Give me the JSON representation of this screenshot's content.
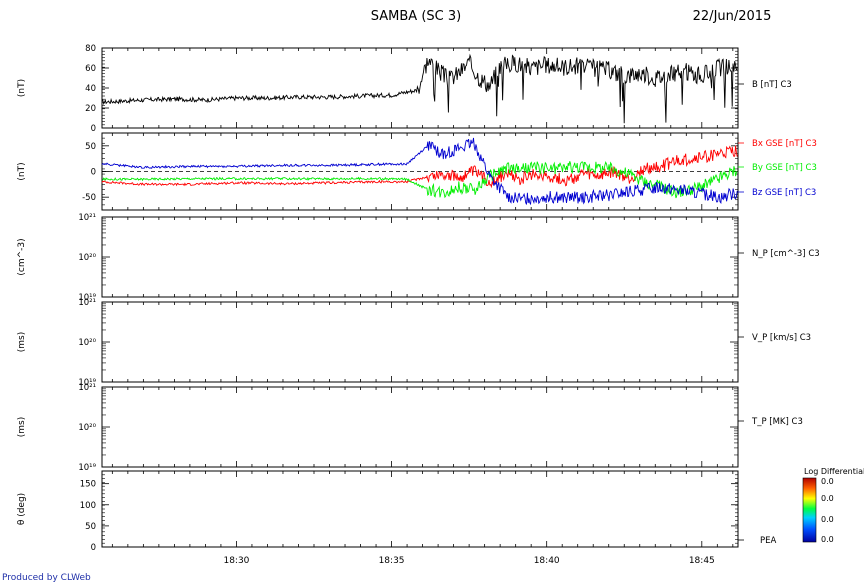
{
  "header": {
    "title": "SAMBA (SC 3)",
    "date": "22/Jun/2015"
  },
  "footer": {
    "credit": "Produced by CLWeb"
  },
  "colors": {
    "axis": "#000000",
    "bx": "#ff0000",
    "by": "#00ee00",
    "bz": "#0000d0",
    "b": "#000000"
  },
  "chart_data": [
    {
      "type": "line",
      "ylabel": "(nT)",
      "ylim": [
        0,
        80
      ],
      "yticks": [
        "0",
        "20",
        "40",
        "60",
        "80"
      ],
      "x_range": [
        "18:25:40",
        "18:46:10"
      ],
      "xticks": [
        "18:30",
        "18:35",
        "18:40",
        "18:45"
      ],
      "series": [
        {
          "name": "B [nT] C3",
          "x": [
            "18:25:40",
            "18:27:00",
            "18:28:00",
            "18:29:00",
            "18:30:00",
            "18:31:00",
            "18:32:00",
            "18:33:00",
            "18:34:00",
            "18:35:00",
            "18:35:50",
            "18:36:10",
            "18:36:30",
            "18:36:50",
            "18:37:10",
            "18:37:30",
            "18:37:50",
            "18:38:10",
            "18:38:30",
            "18:39:00",
            "18:39:30",
            "18:40:00",
            "18:40:30",
            "18:41:00",
            "18:41:30",
            "18:42:00",
            "18:42:30",
            "18:43:00",
            "18:43:30",
            "18:44:00",
            "18:44:30",
            "18:45:00",
            "18:45:30",
            "18:46:10"
          ],
          "values": [
            26,
            28,
            29,
            28,
            30,
            30,
            31,
            31,
            32,
            33,
            38,
            68,
            58,
            48,
            55,
            65,
            50,
            42,
            62,
            65,
            60,
            63,
            61,
            62,
            60,
            58,
            52,
            55,
            50,
            54,
            56,
            52,
            60,
            62
          ]
        }
      ]
    },
    {
      "type": "line",
      "ylabel": "(nT)",
      "ylim": [
        -75,
        75
      ],
      "yticks": [
        "-50",
        "0",
        "50"
      ],
      "x_range": [
        "18:25:40",
        "18:46:10"
      ],
      "xticks": [
        "18:30",
        "18:35",
        "18:40",
        "18:45"
      ],
      "series": [
        {
          "name": "Bx GSE [nT] C3",
          "x": [
            "18:25:40",
            "18:27:00",
            "18:28:30",
            "18:30:00",
            "18:31:30",
            "18:33:00",
            "18:34:30",
            "18:35:30",
            "18:36:10",
            "18:36:40",
            "18:37:10",
            "18:37:40",
            "18:38:10",
            "18:38:40",
            "18:39:10",
            "18:39:40",
            "18:40:10",
            "18:40:40",
            "18:41:10",
            "18:41:40",
            "18:42:10",
            "18:42:40",
            "18:43:10",
            "18:43:40",
            "18:44:10",
            "18:44:40",
            "18:45:10",
            "18:45:40",
            "18:46:10"
          ],
          "values": [
            -20,
            -25,
            -25,
            -22,
            -24,
            -22,
            -20,
            -20,
            -10,
            -5,
            -12,
            0,
            -20,
            -5,
            -15,
            -5,
            -10,
            -18,
            -5,
            -10,
            -2,
            -15,
            5,
            10,
            20,
            25,
            30,
            35,
            40
          ]
        },
        {
          "name": "By GSE [nT] C3",
          "x": [
            "18:25:40",
            "18:27:00",
            "18:28:30",
            "18:30:00",
            "18:31:30",
            "18:33:00",
            "18:34:30",
            "18:35:30",
            "18:36:10",
            "18:36:40",
            "18:37:10",
            "18:37:40",
            "18:38:10",
            "18:38:40",
            "18:39:10",
            "18:39:40",
            "18:40:10",
            "18:40:40",
            "18:41:10",
            "18:41:40",
            "18:42:10",
            "18:42:40",
            "18:43:10",
            "18:43:40",
            "18:44:10",
            "18:44:40",
            "18:45:10",
            "18:45:40",
            "18:46:10"
          ],
          "values": [
            -15,
            -15,
            -14,
            -14,
            -14,
            -14,
            -14,
            -15,
            -35,
            -40,
            -30,
            -35,
            -10,
            5,
            5,
            8,
            5,
            8,
            10,
            8,
            5,
            -5,
            -20,
            -30,
            -40,
            -35,
            -25,
            -10,
            5
          ]
        },
        {
          "name": "Bz GSE [nT] C3",
          "x": [
            "18:25:40",
            "18:27:00",
            "18:28:30",
            "18:30:00",
            "18:31:30",
            "18:33:00",
            "18:34:30",
            "18:35:30",
            "18:36:10",
            "18:36:40",
            "18:37:10",
            "18:37:40",
            "18:38:10",
            "18:38:40",
            "18:39:10",
            "18:39:40",
            "18:40:10",
            "18:40:40",
            "18:41:10",
            "18:41:40",
            "18:42:10",
            "18:42:40",
            "18:43:10",
            "18:43:40",
            "18:44:10",
            "18:44:40",
            "18:45:10",
            "18:45:40",
            "18:46:10"
          ],
          "values": [
            15,
            8,
            10,
            10,
            12,
            12,
            14,
            15,
            50,
            35,
            45,
            55,
            -10,
            -45,
            -55,
            -50,
            -50,
            -52,
            -50,
            -48,
            -45,
            -40,
            -35,
            -30,
            -35,
            -40,
            -45,
            -50,
            -40
          ]
        }
      ]
    },
    {
      "type": "line",
      "ylabel": "(cm^-3)",
      "yticks": [
        "10¹⁹",
        "10²⁰",
        "10²¹"
      ],
      "x_range": [
        "18:25:40",
        "18:46:10"
      ],
      "xticks": [
        "18:30",
        "18:35",
        "18:40",
        "18:45"
      ],
      "series": [
        {
          "name": "N_P [cm^-3] C3",
          "x": [],
          "values": []
        }
      ]
    },
    {
      "type": "line",
      "ylabel": "(ms)",
      "yticks": [
        "10¹⁹",
        "10²⁰",
        "10²¹"
      ],
      "x_range": [
        "18:25:40",
        "18:46:10"
      ],
      "xticks": [
        "18:30",
        "18:35",
        "18:40",
        "18:45"
      ],
      "series": [
        {
          "name": "V_P [km/s] C3",
          "x": [],
          "values": []
        }
      ]
    },
    {
      "type": "line",
      "ylabel": "(ms)",
      "yticks": [
        "10¹⁹",
        "10²⁰",
        "10²¹"
      ],
      "x_range": [
        "18:25:40",
        "18:46:10"
      ],
      "xticks": [
        "18:30",
        "18:35",
        "18:40",
        "18:45"
      ],
      "series": [
        {
          "name": "T_P [MK] C3",
          "x": [],
          "values": []
        }
      ]
    },
    {
      "type": "heatmap",
      "ylabel": "θ (deg)",
      "ylim": [
        0,
        180
      ],
      "yticks": [
        "0",
        "50",
        "100",
        "150"
      ],
      "x_range": [
        "18:25:40",
        "18:46:10"
      ],
      "xticks": [
        "18:30",
        "18:35",
        "18:40",
        "18:45"
      ],
      "series": [
        {
          "name": "PEA",
          "x": [],
          "values": []
        }
      ],
      "colorbar": {
        "label": "Log Differential",
        "ticks": [
          "0.0",
          "0.0",
          "0.0",
          "0.0"
        ]
      }
    }
  ]
}
